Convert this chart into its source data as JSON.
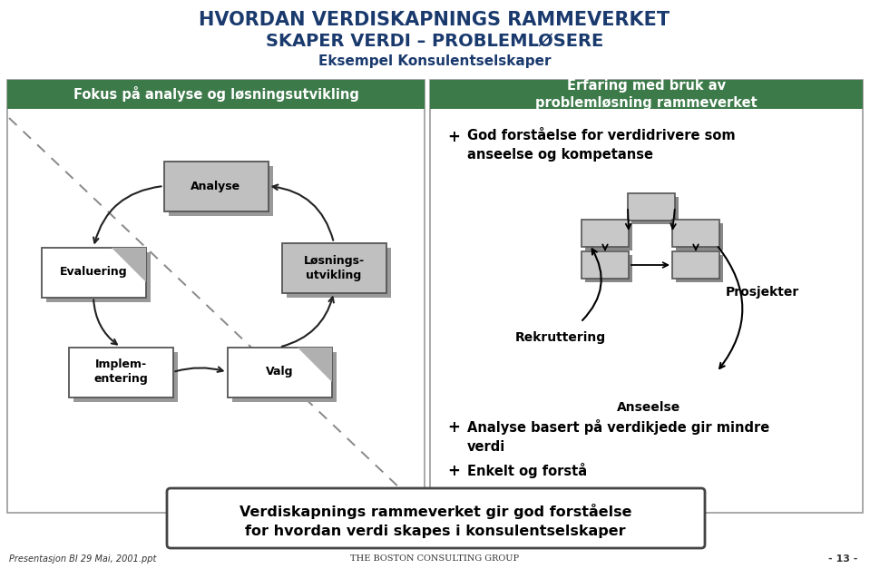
{
  "title_line1": "HVORDAN VERDISKAPNINGS RAMMEVERKET",
  "title_line2": "SKAPER VERDI – PROBLEMLØSERE",
  "title_line3": "Eksempel Konsulentselskaper",
  "left_header": "Fokus på analyse og løsningsutvikling",
  "right_header": "Erfaring med bruk av\nproblemløsning rammeverket",
  "bottom_text": "Verdiskapnings rammeverket gir god forståelse\nfor hvordan verdi skapes i konsulentselskaper",
  "footer_left": "Presentasjon BI 29 Mai, 2001.ppt",
  "footer_center": "THE BOSTON CONSULTING GROUP",
  "footer_right": "- 13 -",
  "title_color": "#1a3a6e",
  "header_bg_color": "#3d7a4a",
  "box_gray_fill": "#c0c0c0",
  "box_white_fill": "#ffffff",
  "shadow_color": "#888888",
  "border_color": "#555555",
  "dashed_color": "#888888",
  "arrow_color": "#222222",
  "small_box_fill": "#c8c8c8",
  "small_box_shadow": "#888888"
}
